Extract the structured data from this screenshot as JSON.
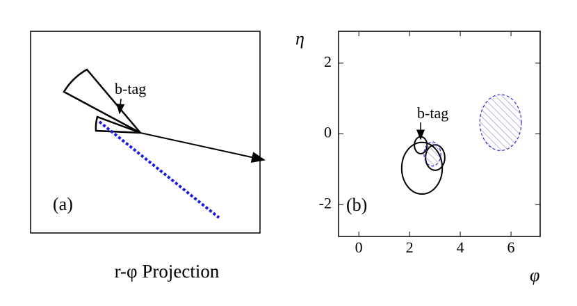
{
  "panel_a": {
    "label": "(a)",
    "annotation": "b-tag",
    "caption": "r-φ Projection"
  },
  "panel_b": {
    "label": "(b)",
    "annotation": "b-tag",
    "x_label": "φ",
    "y_label": "η",
    "xlim": [
      -0.8,
      7.15
    ],
    "ylim": [
      -2.9,
      2.9
    ],
    "xticks": [
      0,
      2,
      4,
      6
    ],
    "yticks": [
      -2,
      0,
      2
    ],
    "ellipses": [
      {
        "cx": 2.49,
        "cy": -0.97,
        "rx": 0.8,
        "ry": 0.73,
        "style": "solid"
      },
      {
        "cx": 2.44,
        "cy": -0.32,
        "rx": 0.25,
        "ry": 0.24,
        "style": "solid"
      },
      {
        "cx": 3.01,
        "cy": -0.67,
        "rx": 0.38,
        "ry": 0.36,
        "style": "solid"
      },
      {
        "cx": 2.9,
        "cy": -0.57,
        "rx": 0.33,
        "ry": 0.34,
        "style": "hatched"
      },
      {
        "cx": 5.59,
        "cy": 0.32,
        "rx": 0.82,
        "ry": 0.79,
        "style": "hatched"
      }
    ]
  }
}
